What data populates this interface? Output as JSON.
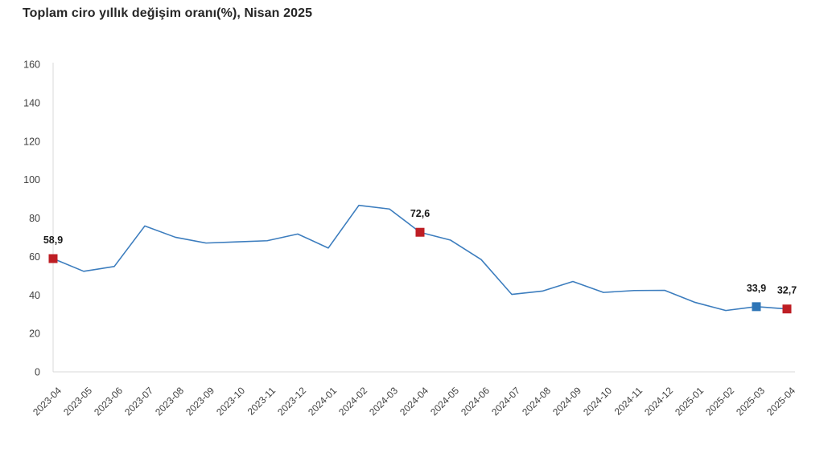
{
  "page": {
    "title": "Toplam ciro yıllık değişim oranı(%), Nisan 2025"
  },
  "colors": {
    "line": "#3C7DBE",
    "marker_blue": "#2E75B6",
    "marker_red": "#BE1E24",
    "axis_line": "#D9D9D9",
    "tick_text": "#404040",
    "data_label_text": "#1A1A1A",
    "title_text": "#262626"
  },
  "chart_data": {
    "type": "line",
    "title": "Toplam ciro yıllık değişim oranı(%), Nisan 2025",
    "categories": [
      "2023-04",
      "2023-05",
      "2023-06",
      "2023-07",
      "2023-08",
      "2023-09",
      "2023-10",
      "2023-11",
      "2023-12",
      "2024-01",
      "2024-02",
      "2024-03",
      "2024-04",
      "2024-05",
      "2024-06",
      "2024-07",
      "2024-08",
      "2024-09",
      "2024-10",
      "2024-11",
      "2024-12",
      "2025-01",
      "2025-02",
      "2025-03",
      "2025-04"
    ],
    "values": [
      58.9,
      52.3,
      54.8,
      75.9,
      70.0,
      67.0,
      67.6,
      68.2,
      71.7,
      64.4,
      86.6,
      84.7,
      72.6,
      68.5,
      58.4,
      40.3,
      42.0,
      47.0,
      41.3,
      42.3,
      42.4,
      36.1,
      31.9,
      33.9,
      32.7
    ],
    "xlabel": "",
    "ylabel": "",
    "ylim": [
      0,
      160
    ],
    "ytick_step": 20,
    "yticks": [
      0,
      20,
      40,
      60,
      80,
      100,
      120,
      140,
      160
    ],
    "grid": false,
    "legend_position": "none",
    "annotations": [
      {
        "index": 0,
        "category": "2023-04",
        "label": "58,9",
        "marker": "square",
        "color": "red"
      },
      {
        "index": 12,
        "category": "2024-04",
        "label": "72,6",
        "marker": "square",
        "color": "red"
      },
      {
        "index": 23,
        "category": "2025-03",
        "label": "33,9",
        "marker": "square",
        "color": "blue"
      },
      {
        "index": 24,
        "category": "2025-04",
        "label": "32,7",
        "marker": "square",
        "color": "red"
      }
    ]
  }
}
